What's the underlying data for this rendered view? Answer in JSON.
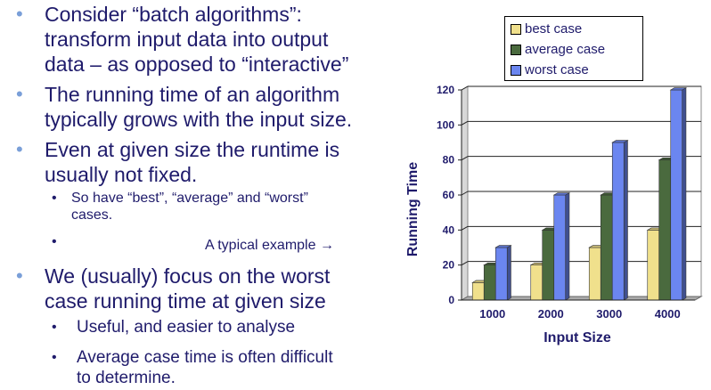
{
  "bullets": [
    {
      "level": 1,
      "lines": [
        "Consider “batch algorithms”:",
        "transform input data into output",
        "data – as opposed to “interactive”"
      ]
    },
    {
      "level": 1,
      "lines": [
        "The running time of an algorithm",
        "typically grows with the input size."
      ]
    },
    {
      "level": 1,
      "lines": [
        "Even at given size the runtime is",
        "usually not fixed."
      ]
    },
    {
      "level": 2,
      "small": true,
      "lines": [
        "So have “best”, “average” and “worst”",
        "cases."
      ]
    },
    {
      "level": 2,
      "small": true,
      "lines": [
        ""
      ]
    },
    {
      "level": 1,
      "lines": [
        "We (usually) focus on the worst",
        "case running time at given size"
      ]
    },
    {
      "level": 2,
      "lines": [
        "Useful, and easier to analyse"
      ]
    },
    {
      "level": 2,
      "lines": [
        "Average case time is often difficult",
        "to determine."
      ]
    }
  ],
  "typical_example": "A typical example →",
  "chart_data": {
    "type": "bar",
    "categories": [
      "1000",
      "2000",
      "3000",
      "4000"
    ],
    "series": [
      {
        "name": "best case",
        "values": [
          10,
          20,
          30,
          40
        ],
        "color": "#f0e08c"
      },
      {
        "name": "average case",
        "values": [
          20,
          40,
          60,
          80
        ],
        "color": "#4a6a3e"
      },
      {
        "name": "worst case",
        "values": [
          30,
          60,
          90,
          120
        ],
        "color": "#6b86f0"
      }
    ],
    "xlabel": "Input Size",
    "ylabel": "Running Time",
    "ylim": [
      0,
      120
    ],
    "yticks": [
      0,
      20,
      40,
      60,
      80,
      100,
      120
    ],
    "grid": true,
    "legend_position": "top",
    "three_d": true
  }
}
